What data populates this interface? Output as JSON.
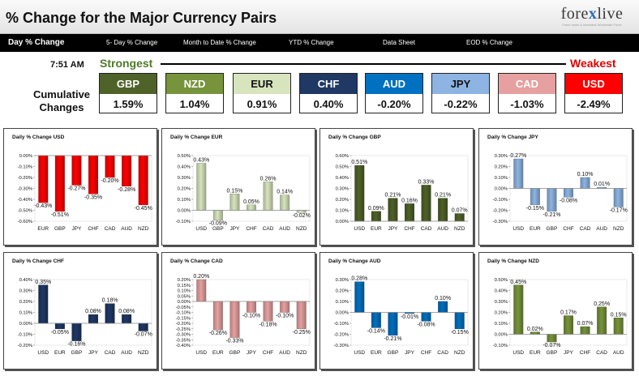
{
  "header": {
    "title": "% Change for the Major Currency Pairs",
    "logo_text_left": "fore",
    "logo_text_x": "x",
    "logo_text_right": "live",
    "logo_tagline": "Forex news & Interbank Wholesale Forex"
  },
  "tabs": [
    {
      "label": "Day % Change",
      "active": true
    },
    {
      "label": "5- Day % Change",
      "active": false
    },
    {
      "label": "Month to Date % Change",
      "active": false
    },
    {
      "label": "YTD % Change",
      "active": false
    },
    {
      "label": "Data Sheet",
      "active": false
    },
    {
      "label": "EOD % Change",
      "active": false
    }
  ],
  "ranking": {
    "time": "7:51 AM",
    "strongest_label": "Strongest",
    "weakest_label": "Weakest",
    "row_label_line1": "Cumulative",
    "row_label_line2": "Changes",
    "cards": [
      {
        "currency": "GBP",
        "value": "1.59%",
        "header_color": "#4f6228",
        "text_color": "#ffffff"
      },
      {
        "currency": "NZD",
        "value": "1.04%",
        "header_color": "#77933c",
        "text_color": "#ffffff"
      },
      {
        "currency": "EUR",
        "value": "0.91%",
        "header_color": "#d7e4bd",
        "text_color": "#111111"
      },
      {
        "currency": "CHF",
        "value": "0.40%",
        "header_color": "#1f3864",
        "text_color": "#ffffff"
      },
      {
        "currency": "AUD",
        "value": "-0.20%",
        "header_color": "#0070c0",
        "text_color": "#ffffff"
      },
      {
        "currency": "JPY",
        "value": "-0.22%",
        "header_color": "#8db4e2",
        "text_color": "#111111"
      },
      {
        "currency": "CAD",
        "value": "-1.03%",
        "header_color": "#e6a0a0",
        "text_color": "#ffffff"
      },
      {
        "currency": "USD",
        "value": "-2.49%",
        "header_color": "#ff0000",
        "text_color": "#ffffff"
      }
    ]
  },
  "chart_data": [
    {
      "type": "bar",
      "title": "Daily % Change USD",
      "color": "#ff0000",
      "categories": [
        "EUR",
        "GBP",
        "JPY",
        "CHF",
        "CAD",
        "AUD",
        "NZD"
      ],
      "values": [
        -0.43,
        -0.51,
        -0.27,
        -0.35,
        -0.2,
        -0.28,
        -0.45
      ],
      "labels": [
        "-0.43%",
        "-0.51%",
        "-0.27%",
        "-0.35%",
        "-0.20%",
        "-0.28%",
        "-0.45%"
      ],
      "ylim": [
        -0.6,
        0.0
      ],
      "yticks": [
        0.0,
        -0.1,
        -0.2,
        -0.3,
        -0.4,
        -0.5,
        -0.6
      ],
      "ytick_labels": [
        "0.00%",
        "-0.10%",
        "-0.20%",
        "-0.30%",
        "-0.40%",
        "-0.50%",
        "-0.60%"
      ]
    },
    {
      "type": "bar",
      "title": "Daily % Change EUR",
      "color": "#d7e4bd",
      "categories": [
        "USD",
        "GBP",
        "JPY",
        "CHF",
        "CAD",
        "AUD",
        "NZD"
      ],
      "values": [
        0.43,
        -0.09,
        0.15,
        0.05,
        0.26,
        0.14,
        -0.02
      ],
      "labels": [
        "0.43%",
        "-0.09%",
        "0.15%",
        "0.05%",
        "0.26%",
        "0.14%",
        "-0.02%"
      ],
      "ylim": [
        -0.1,
        0.5
      ],
      "yticks": [
        0.5,
        0.4,
        0.3,
        0.2,
        0.1,
        0.0,
        -0.1
      ],
      "ytick_labels": [
        "0.50%",
        "0.40%",
        "0.30%",
        "0.20%",
        "0.10%",
        "0.00%",
        "-0.10%"
      ]
    },
    {
      "type": "bar",
      "title": "Daily % Change GBP",
      "color": "#4f6228",
      "categories": [
        "USD",
        "EUR",
        "JPY",
        "CHF",
        "CAD",
        "AUD",
        "NZD"
      ],
      "values": [
        0.51,
        0.09,
        0.21,
        0.16,
        0.33,
        0.21,
        0.07
      ],
      "labels": [
        "0.51%",
        "0.09%",
        "0.21%",
        "0.16%",
        "0.33%",
        "0.21%",
        "0.07%"
      ],
      "ylim": [
        0.0,
        0.6
      ],
      "yticks": [
        0.6,
        0.5,
        0.4,
        0.3,
        0.2,
        0.1,
        0.0
      ],
      "ytick_labels": [
        "0.60%",
        "0.50%",
        "0.40%",
        "0.30%",
        "0.20%",
        "0.10%",
        "0.00%"
      ]
    },
    {
      "type": "bar",
      "title": "Daily % Change JPY",
      "color": "#8db4e2",
      "categories": [
        "USD",
        "EUR",
        "GBP",
        "CHF",
        "CAD",
        "AUD",
        "NZD"
      ],
      "values": [
        0.27,
        -0.15,
        -0.21,
        -0.08,
        0.1,
        0.01,
        -0.17
      ],
      "labels": [
        "0.27%",
        "-0.15%",
        "-0.21%",
        "-0.08%",
        "0.10%",
        "0.01%",
        "-0.17%"
      ],
      "ylim": [
        -0.3,
        0.3
      ],
      "yticks": [
        0.3,
        0.2,
        0.1,
        0.0,
        -0.1,
        -0.2,
        -0.3
      ],
      "ytick_labels": [
        "0.30%",
        "0.20%",
        "0.10%",
        "0.00%",
        "-0.10%",
        "-0.20%",
        "-0.30%"
      ]
    },
    {
      "type": "bar",
      "title": "Daily % Change CHF",
      "color": "#1f3864",
      "categories": [
        "USD",
        "EUR",
        "GBP",
        "JPY",
        "CAD",
        "AUD",
        "NZD"
      ],
      "values": [
        0.35,
        -0.05,
        -0.16,
        0.08,
        0.18,
        0.08,
        -0.07
      ],
      "labels": [
        "0.35%",
        "-0.05%",
        "-0.16%",
        "0.08%",
        "0.18%",
        "0.08%",
        "-0.07%"
      ],
      "ylim": [
        -0.2,
        0.4
      ],
      "yticks": [
        0.4,
        0.3,
        0.2,
        0.1,
        0.0,
        -0.1,
        -0.2
      ],
      "ytick_labels": [
        "0.40%",
        "0.30%",
        "0.20%",
        "0.10%",
        "0.00%",
        "-0.10%",
        "-0.20%"
      ]
    },
    {
      "type": "bar",
      "title": "Daily % Change CAD",
      "color": "#e6a0a0",
      "categories": [
        "USD",
        "EUR",
        "GBP",
        "JPY",
        "CHF",
        "AUD",
        "NZD"
      ],
      "values": [
        0.2,
        -0.26,
        -0.33,
        -0.1,
        -0.18,
        -0.1,
        -0.25
      ],
      "labels": [
        "0.20%",
        "-0.26%",
        "-0.33%",
        "-0.10%",
        "-0.18%",
        "-0.10%",
        "-0.25%"
      ],
      "ylim": [
        -0.4,
        0.2
      ],
      "yticks": [
        0.2,
        0.15,
        0.1,
        0.05,
        0.0,
        -0.05,
        -0.1,
        -0.15,
        -0.2,
        -0.25,
        -0.3,
        -0.35,
        -0.4
      ],
      "ytick_labels": [
        "0.20%",
        "0.15%",
        "0.10%",
        "0.05%",
        "0.00%",
        "-0.05%",
        "-0.10%",
        "-0.15%",
        "-0.20%",
        "-0.25%",
        "-0.30%",
        "-0.35%",
        "-0.40%"
      ]
    },
    {
      "type": "bar",
      "title": "Daily % Change AUD",
      "color": "#0070c0",
      "categories": [
        "USD",
        "EUR",
        "GBP",
        "JPY",
        "CHF",
        "CAD",
        "NZD"
      ],
      "values": [
        0.28,
        -0.14,
        -0.21,
        -0.01,
        -0.08,
        0.1,
        -0.15
      ],
      "labels": [
        "0.28%",
        "-0.14%",
        "-0.21%",
        "-0.01%",
        "-0.08%",
        "0.10%",
        "-0.15%"
      ],
      "ylim": [
        -0.3,
        0.3
      ],
      "yticks": [
        0.3,
        0.2,
        0.1,
        0.0,
        -0.1,
        -0.2,
        -0.3
      ],
      "ytick_labels": [
        "0.30%",
        "0.20%",
        "0.10%",
        "0.00%",
        "-0.10%",
        "-0.20%",
        "-0.30%"
      ]
    },
    {
      "type": "bar",
      "title": "Daily % Change NZD",
      "color": "#77933c",
      "categories": [
        "USD",
        "EUR",
        "GBP",
        "JPY",
        "CHF",
        "CAD",
        "AUD"
      ],
      "values": [
        0.45,
        0.02,
        -0.07,
        0.17,
        0.07,
        0.25,
        0.15
      ],
      "labels": [
        "0.45%",
        "0.02%",
        "-0.07%",
        "0.17%",
        "0.07%",
        "0.25%",
        "0.15%"
      ],
      "ylim": [
        -0.1,
        0.5
      ],
      "yticks": [
        0.5,
        0.4,
        0.3,
        0.2,
        0.1,
        0.0,
        -0.1
      ],
      "ytick_labels": [
        "0.50%",
        "0.40%",
        "0.30%",
        "0.20%",
        "0.10%",
        "0.00%",
        "-0.10%"
      ]
    }
  ]
}
